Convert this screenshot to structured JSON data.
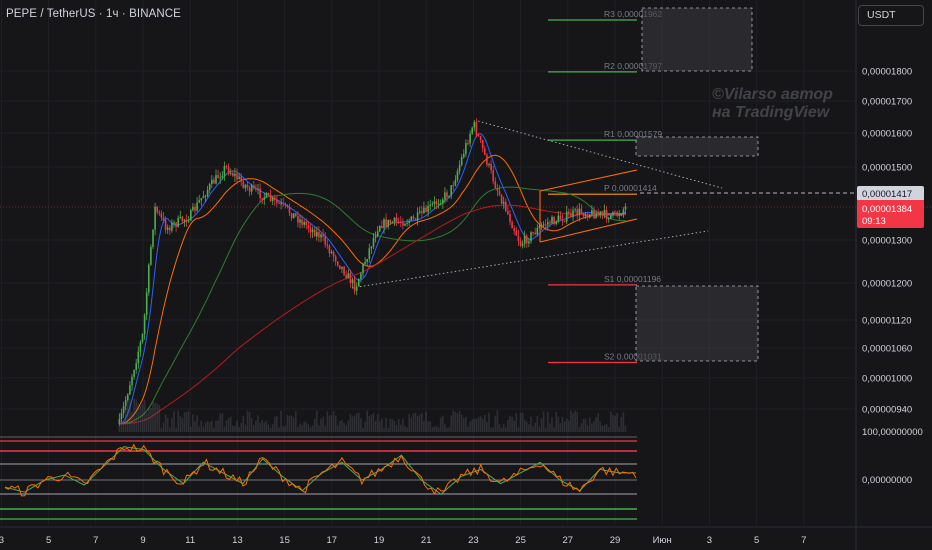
{
  "header": {
    "title": "PEPE / TetherUS · 1ч · BINANCE",
    "currency_button": "USDT"
  },
  "watermark": {
    "line1": "©Vilarso автор",
    "line2": "на TradingView"
  },
  "price_axis": {
    "ticks": [
      "0,00001800",
      "0,00001700",
      "0,00001600",
      "0,00001500",
      "0,00001300",
      "0,00001200",
      "0,00001120",
      "0,00001060",
      "0,00001000",
      "0,00000940"
    ],
    "dashed_level_label": "0,00001417",
    "current_price_label": "0,00001384",
    "countdown_label": "09:13"
  },
  "indicator_axis": {
    "top_label": "100,00000000",
    "zero_label": "0,00000000"
  },
  "time_axis": {
    "ticks": [
      "3",
      "5",
      "7",
      "9",
      "11",
      "13",
      "15",
      "17",
      "19",
      "21",
      "23",
      "25",
      "27",
      "29",
      "Июн",
      "3",
      "5",
      "7"
    ]
  },
  "pivot_levels": [
    {
      "label": "R3 0,00001962",
      "value": 1.962e-05,
      "color": "#4caf50"
    },
    {
      "label": "R2 0,00001797",
      "value": 1.797e-05,
      "color": "#4caf50"
    },
    {
      "label": "R1 0,00001579",
      "value": 1.579e-05,
      "color": "#4caf50"
    },
    {
      "label": "P 0,00001414",
      "value": 1.414e-05,
      "color": "#ff9800"
    },
    {
      "label": "S1 0,00001196",
      "value": 1.196e-05,
      "color": "#f23645"
    },
    {
      "label": "S2 0,00001031",
      "value": 1.031e-05,
      "color": "#f23645"
    }
  ],
  "colors": {
    "background": "#161619",
    "up_candle": "#4caf50",
    "down_candle": "#f23645",
    "ma_blue": "#2962ff",
    "ma_orange": "#ff6d00",
    "ma_green": "#2e7d32",
    "ma_red": "#b71c1c",
    "channel": "#ff6d00",
    "price_tag": "#f23645",
    "indicator_line": "#ff6d00",
    "indicator_signal": "#4caf50"
  },
  "chart_data": {
    "type": "candlestick",
    "title": "PEPE / TetherUS · 1ч · BINANCE",
    "timeframe": "1ч",
    "x_dates": [
      "3",
      "5",
      "7",
      "9",
      "11",
      "13",
      "15",
      "17",
      "19",
      "21",
      "23",
      "25",
      "27",
      "29",
      "Июн",
      "3",
      "5",
      "7"
    ],
    "ylim": [
      8.9e-06,
      2.05e-05
    ],
    "price_path": [
      {
        "date": "8",
        "close": 9.1e-06
      },
      {
        "date": "9",
        "close": 1.09e-05
      },
      {
        "date": "9.5",
        "close": 1.38e-05
      },
      {
        "date": "10",
        "close": 1.33e-05
      },
      {
        "date": "11",
        "close": 1.36e-05
      },
      {
        "date": "12.5",
        "close": 1.5e-05
      },
      {
        "date": "13.5",
        "close": 1.43e-05
      },
      {
        "date": "15",
        "close": 1.38e-05
      },
      {
        "date": "16.5",
        "close": 1.31e-05
      },
      {
        "date": "18",
        "close": 1.19e-05
      },
      {
        "date": "19",
        "close": 1.34e-05
      },
      {
        "date": "20.5",
        "close": 1.35e-05
      },
      {
        "date": "22",
        "close": 1.42e-05
      },
      {
        "date": "23",
        "close": 1.63e-05
      },
      {
        "date": "24",
        "close": 1.43e-05
      },
      {
        "date": "25",
        "close": 1.29e-05
      },
      {
        "date": "26",
        "close": 1.34e-05
      },
      {
        "date": "27.5",
        "close": 1.37e-05
      },
      {
        "date": "29",
        "close": 1.36e-05
      },
      {
        "date": "29.5",
        "close": 1.384e-05
      }
    ],
    "current_price": 1.384e-05,
    "dashed_level": 1.417e-05,
    "indicator": {
      "type": "oscillator",
      "range": [
        0,
        100
      ],
      "bands": [
        80,
        70,
        60,
        50,
        40,
        30,
        20
      ],
      "values": [
        35,
        28,
        45,
        52,
        38,
        65,
        92,
        88,
        60,
        40,
        70,
        55,
        40,
        75,
        50,
        30,
        55,
        70,
        45,
        60,
        80,
        45,
        25,
        50,
        60,
        40,
        55,
        70,
        45,
        30,
        60,
        55
      ]
    }
  }
}
